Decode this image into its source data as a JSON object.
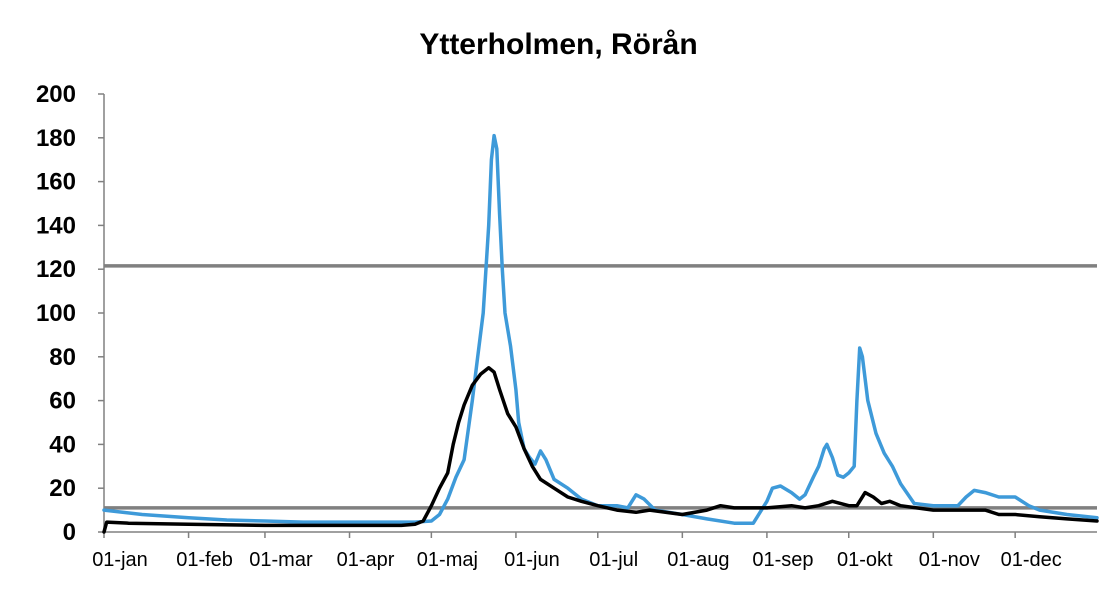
{
  "chart_data": {
    "type": "line",
    "title": "Ytterholmen, Rörån",
    "xlabel": "",
    "ylabel": "",
    "ylim": [
      0,
      200
    ],
    "yticks": [
      0,
      20,
      40,
      60,
      80,
      100,
      120,
      140,
      160,
      180,
      200
    ],
    "xlim": [
      "01-jan",
      "31-dec"
    ],
    "xticks": [
      "01-jan",
      "01-feb",
      "01-mar",
      "01-apr",
      "01-maj",
      "01-jun",
      "01-jul",
      "01-aug",
      "01-sep",
      "01-okt",
      "01-nov",
      "01-dec"
    ],
    "grid": false,
    "legend": "none",
    "reference_lines": [
      {
        "y": 121.5,
        "color": "#808080"
      },
      {
        "y": 11,
        "color": "#808080"
      }
    ],
    "series": [
      {
        "color": "#3e9ad9",
        "points": [
          [
            "01-jan",
            10
          ],
          [
            "15-jan",
            8
          ],
          [
            "01-feb",
            6.5
          ],
          [
            "15-feb",
            5.5
          ],
          [
            "01-mar",
            5
          ],
          [
            "15-mar",
            4.5
          ],
          [
            "01-apr",
            4.5
          ],
          [
            "15-apr",
            4.5
          ],
          [
            "25-apr",
            4.5
          ],
          [
            "01-maj",
            5
          ],
          [
            "04-maj",
            8
          ],
          [
            "07-maj",
            15
          ],
          [
            "10-maj",
            25
          ],
          [
            "13-maj",
            33
          ],
          [
            "16-maj",
            60
          ],
          [
            "18-maj",
            80
          ],
          [
            "20-maj",
            100
          ],
          [
            "22-maj",
            140
          ],
          [
            "23-maj",
            170
          ],
          [
            "24-maj",
            181
          ],
          [
            "25-maj",
            175
          ],
          [
            "26-maj",
            145
          ],
          [
            "27-maj",
            120
          ],
          [
            "28-maj",
            100
          ],
          [
            "30-maj",
            85
          ],
          [
            "01-jun",
            65
          ],
          [
            "02-jun",
            50
          ],
          [
            "04-jun",
            38
          ],
          [
            "06-jun",
            34
          ],
          [
            "08-jun",
            31
          ],
          [
            "10-jun",
            37
          ],
          [
            "12-jun",
            33
          ],
          [
            "15-jun",
            24
          ],
          [
            "20-jun",
            20
          ],
          [
            "25-jun",
            15
          ],
          [
            "01-jul",
            12
          ],
          [
            "08-jul",
            12
          ],
          [
            "12-jul",
            11
          ],
          [
            "15-jul",
            17
          ],
          [
            "18-jul",
            15
          ],
          [
            "22-jul",
            10
          ],
          [
            "01-aug",
            8
          ],
          [
            "10-aug",
            6
          ],
          [
            "20-aug",
            4
          ],
          [
            "27-aug",
            4
          ],
          [
            "29-aug",
            8
          ],
          [
            "01-sep",
            14
          ],
          [
            "03-sep",
            20
          ],
          [
            "06-sep",
            21
          ],
          [
            "10-sep",
            18
          ],
          [
            "13-sep",
            15
          ],
          [
            "15-sep",
            17
          ],
          [
            "18-sep",
            25
          ],
          [
            "20-sep",
            30
          ],
          [
            "22-sep",
            38
          ],
          [
            "23-sep",
            40
          ],
          [
            "25-sep",
            34
          ],
          [
            "27-sep",
            26
          ],
          [
            "29-sep",
            25
          ],
          [
            "01-okt",
            27
          ],
          [
            "03-okt",
            30
          ],
          [
            "04-okt",
            60
          ],
          [
            "05-okt",
            84
          ],
          [
            "06-okt",
            80
          ],
          [
            "08-okt",
            60
          ],
          [
            "11-okt",
            45
          ],
          [
            "14-okt",
            36
          ],
          [
            "17-okt",
            30
          ],
          [
            "20-okt",
            22
          ],
          [
            "25-okt",
            13
          ],
          [
            "01-nov",
            12
          ],
          [
            "10-nov",
            12
          ],
          [
            "13-nov",
            16
          ],
          [
            "16-nov",
            19
          ],
          [
            "20-nov",
            18
          ],
          [
            "25-nov",
            16
          ],
          [
            "01-dec",
            16
          ],
          [
            "06-dec",
            12
          ],
          [
            "10-dec",
            10
          ],
          [
            "20-dec",
            8
          ],
          [
            "31-dec",
            6.5
          ]
        ]
      },
      {
        "color": "#000000",
        "points": [
          [
            "01-jan",
            0
          ],
          [
            "02-jan",
            4.5
          ],
          [
            "10-jan",
            4
          ],
          [
            "01-feb",
            3.5
          ],
          [
            "01-mar",
            3
          ],
          [
            "01-apr",
            3
          ],
          [
            "20-apr",
            3
          ],
          [
            "25-apr",
            3.5
          ],
          [
            "28-apr",
            5
          ],
          [
            "01-maj",
            12
          ],
          [
            "04-maj",
            20
          ],
          [
            "07-maj",
            27
          ],
          [
            "09-maj",
            40
          ],
          [
            "11-maj",
            50
          ],
          [
            "13-maj",
            58
          ],
          [
            "16-maj",
            67
          ],
          [
            "19-maj",
            72
          ],
          [
            "22-maj",
            75
          ],
          [
            "24-maj",
            73
          ],
          [
            "26-maj",
            65
          ],
          [
            "29-maj",
            54
          ],
          [
            "01-jun",
            48
          ],
          [
            "04-jun",
            38
          ],
          [
            "07-jun",
            30
          ],
          [
            "10-jun",
            24
          ],
          [
            "15-jun",
            20
          ],
          [
            "20-jun",
            16
          ],
          [
            "25-jun",
            14
          ],
          [
            "01-jul",
            12
          ],
          [
            "08-jul",
            10
          ],
          [
            "15-jul",
            9
          ],
          [
            "20-jul",
            10
          ],
          [
            "01-aug",
            8
          ],
          [
            "10-aug",
            10
          ],
          [
            "15-aug",
            12
          ],
          [
            "20-aug",
            11
          ],
          [
            "01-sep",
            11
          ],
          [
            "10-sep",
            12
          ],
          [
            "15-sep",
            11
          ],
          [
            "20-sep",
            12
          ],
          [
            "25-sep",
            14
          ],
          [
            "01-okt",
            12
          ],
          [
            "04-okt",
            12
          ],
          [
            "07-okt",
            18
          ],
          [
            "10-okt",
            16
          ],
          [
            "13-okt",
            13
          ],
          [
            "16-okt",
            14
          ],
          [
            "20-okt",
            12
          ],
          [
            "01-nov",
            10
          ],
          [
            "10-nov",
            10
          ],
          [
            "20-nov",
            10
          ],
          [
            "25-nov",
            8
          ],
          [
            "01-dec",
            8
          ],
          [
            "10-dec",
            7
          ],
          [
            "20-dec",
            6
          ],
          [
            "31-dec",
            5
          ]
        ]
      }
    ]
  }
}
